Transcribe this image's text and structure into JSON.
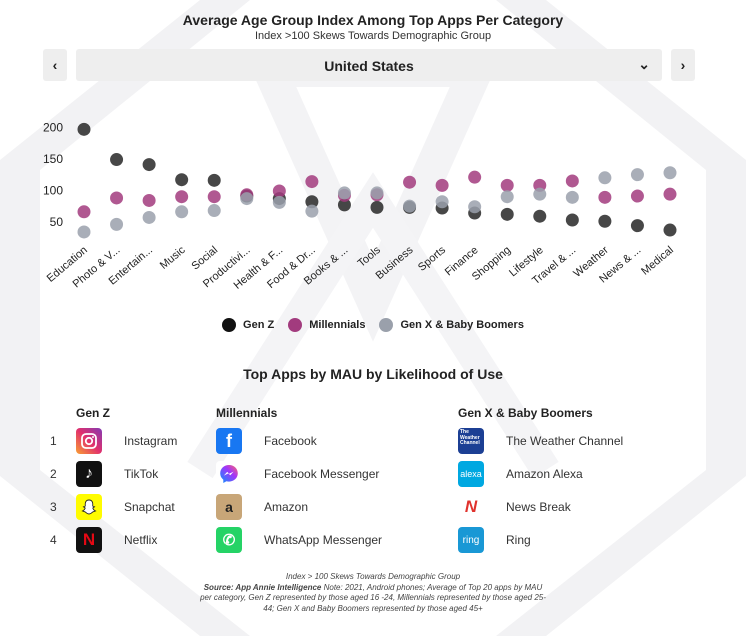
{
  "title": "Average Age Group Index Among Top Apps Per Category",
  "subtitle": "Index  >100 Skews Towards Demographic Group",
  "nav": {
    "prev_icon": "‹",
    "next_icon": "›",
    "selected_country": "United States",
    "chevron": "⌄"
  },
  "colors": {
    "genz": "#333333",
    "millennials": "#a23b7e",
    "genx": "#9aa0ab",
    "select_bg": "#eeeeee"
  },
  "chart_data": {
    "type": "scatter",
    "title": "Average Age Group Index Among Top Apps Per Category",
    "subtitle": "Index  >100 Skews Towards Demographic Group",
    "categories": [
      "Education",
      "Photo & V...",
      "Entertain...",
      "Music",
      "Social",
      "Productivi...",
      "Health & F...",
      "Food & Dr...",
      "Books & ...",
      "Tools",
      "Business",
      "Sports",
      "Finance",
      "Shopping",
      "Lifestyle",
      "Travel & ...",
      "Weather",
      "News & ...",
      "Medical"
    ],
    "yticks": [
      50,
      100,
      150,
      200
    ],
    "ylim": [
      10,
      215
    ],
    "series": [
      {
        "name": "Gen Z",
        "color": "#333333",
        "values": [
          197,
          149,
          141,
          117,
          116,
          91,
          87,
          82,
          77,
          73,
          73,
          72,
          64,
          62,
          59,
          53,
          51,
          44,
          37
        ]
      },
      {
        "name": "Millennials",
        "color": "#a23b7e",
        "values": [
          66,
          88,
          84,
          90,
          90,
          93,
          99,
          114,
          92,
          93,
          113,
          108,
          121,
          108,
          108,
          115,
          89,
          91,
          94
        ]
      },
      {
        "name": "Gen X & Baby Boomers",
        "color": "#9aa0ab",
        "values": [
          34,
          46,
          57,
          66,
          68,
          87,
          81,
          67,
          96,
          96,
          75,
          82,
          74,
          90,
          94,
          89,
          120,
          125,
          128
        ]
      }
    ],
    "legend": [
      "Gen Z",
      "Millennials",
      "Gen X & Baby Boomers"
    ],
    "legend_position": "bottom",
    "grid": false
  },
  "top_apps": {
    "title": "Top Apps by MAU by Likelihood of Use",
    "ranks": [
      "1",
      "2",
      "3",
      "4"
    ],
    "columns": [
      {
        "header": "Gen Z",
        "apps": [
          {
            "name": "Instagram",
            "icon": "instagram-icon"
          },
          {
            "name": "TikTok",
            "icon": "tiktok-icon"
          },
          {
            "name": "Snapchat",
            "icon": "snapchat-icon"
          },
          {
            "name": "Netflix",
            "icon": "netflix-icon"
          }
        ]
      },
      {
        "header": "Millennials",
        "apps": [
          {
            "name": "Facebook",
            "icon": "facebook-icon"
          },
          {
            "name": "Facebook Messenger",
            "icon": "messenger-icon"
          },
          {
            "name": "Amazon",
            "icon": "amazon-icon"
          },
          {
            "name": "WhatsApp Messenger",
            "icon": "whatsapp-icon"
          }
        ]
      },
      {
        "header": "Gen X & Baby Boomers",
        "apps": [
          {
            "name": "The Weather Channel",
            "icon": "weather-channel-icon"
          },
          {
            "name": "Amazon Alexa",
            "icon": "alexa-icon"
          },
          {
            "name": "News Break",
            "icon": "news-break-icon"
          },
          {
            "name": "Ring",
            "icon": "ring-icon"
          }
        ]
      }
    ]
  },
  "icon_glyphs": {
    "tiktok": "♪",
    "facebook": "f",
    "netflix": "N",
    "amazon": "a",
    "whatsapp": "✆",
    "weather_channel": "The Weather Channel",
    "alexa": "alexa",
    "news_break": "N",
    "ring": "ring"
  },
  "footer": {
    "line1": "Index > 100 Skews Towards Demographic Group",
    "source_label": "Source: App Annie Intelligence",
    "source_note": " Note: 2021, Android phones; Average of Top 20 apps by MAU per category, Gen Z represented by those aged 16 -24, Millennials represented by those aged 25-44; Gen X and Baby Boomers represented by those aged 45+"
  }
}
